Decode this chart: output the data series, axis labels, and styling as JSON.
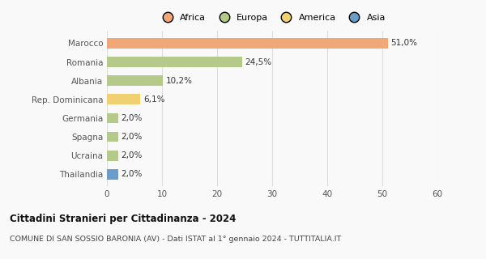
{
  "categories": [
    "Marocco",
    "Romania",
    "Albania",
    "Rep. Dominicana",
    "Germania",
    "Spagna",
    "Ucraina",
    "Thailandia"
  ],
  "values": [
    51.0,
    24.5,
    10.2,
    6.1,
    2.0,
    2.0,
    2.0,
    2.0
  ],
  "labels": [
    "51,0%",
    "24,5%",
    "10,2%",
    "6,1%",
    "2,0%",
    "2,0%",
    "2,0%",
    "2,0%"
  ],
  "colors": [
    "#F0A878",
    "#B5C98A",
    "#B5C98A",
    "#F0D070",
    "#B5C98A",
    "#B5C98A",
    "#B5C98A",
    "#6A9EC8"
  ],
  "legend": [
    {
      "label": "Africa",
      "color": "#F0A878"
    },
    {
      "label": "Europa",
      "color": "#B5C98A"
    },
    {
      "label": "America",
      "color": "#F0D070"
    },
    {
      "label": "Asia",
      "color": "#6A9EC8"
    }
  ],
  "xlim": [
    0,
    60
  ],
  "xticks": [
    0,
    10,
    20,
    30,
    40,
    50,
    60
  ],
  "title": "Cittadini Stranieri per Cittadinanza - 2024",
  "subtitle": "COMUNE DI SAN SOSSIO BARONIA (AV) - Dati ISTAT al 1° gennaio 2024 - TUTTITALIA.IT",
  "background_color": "#f9f9f9",
  "grid_color": "#dddddd"
}
